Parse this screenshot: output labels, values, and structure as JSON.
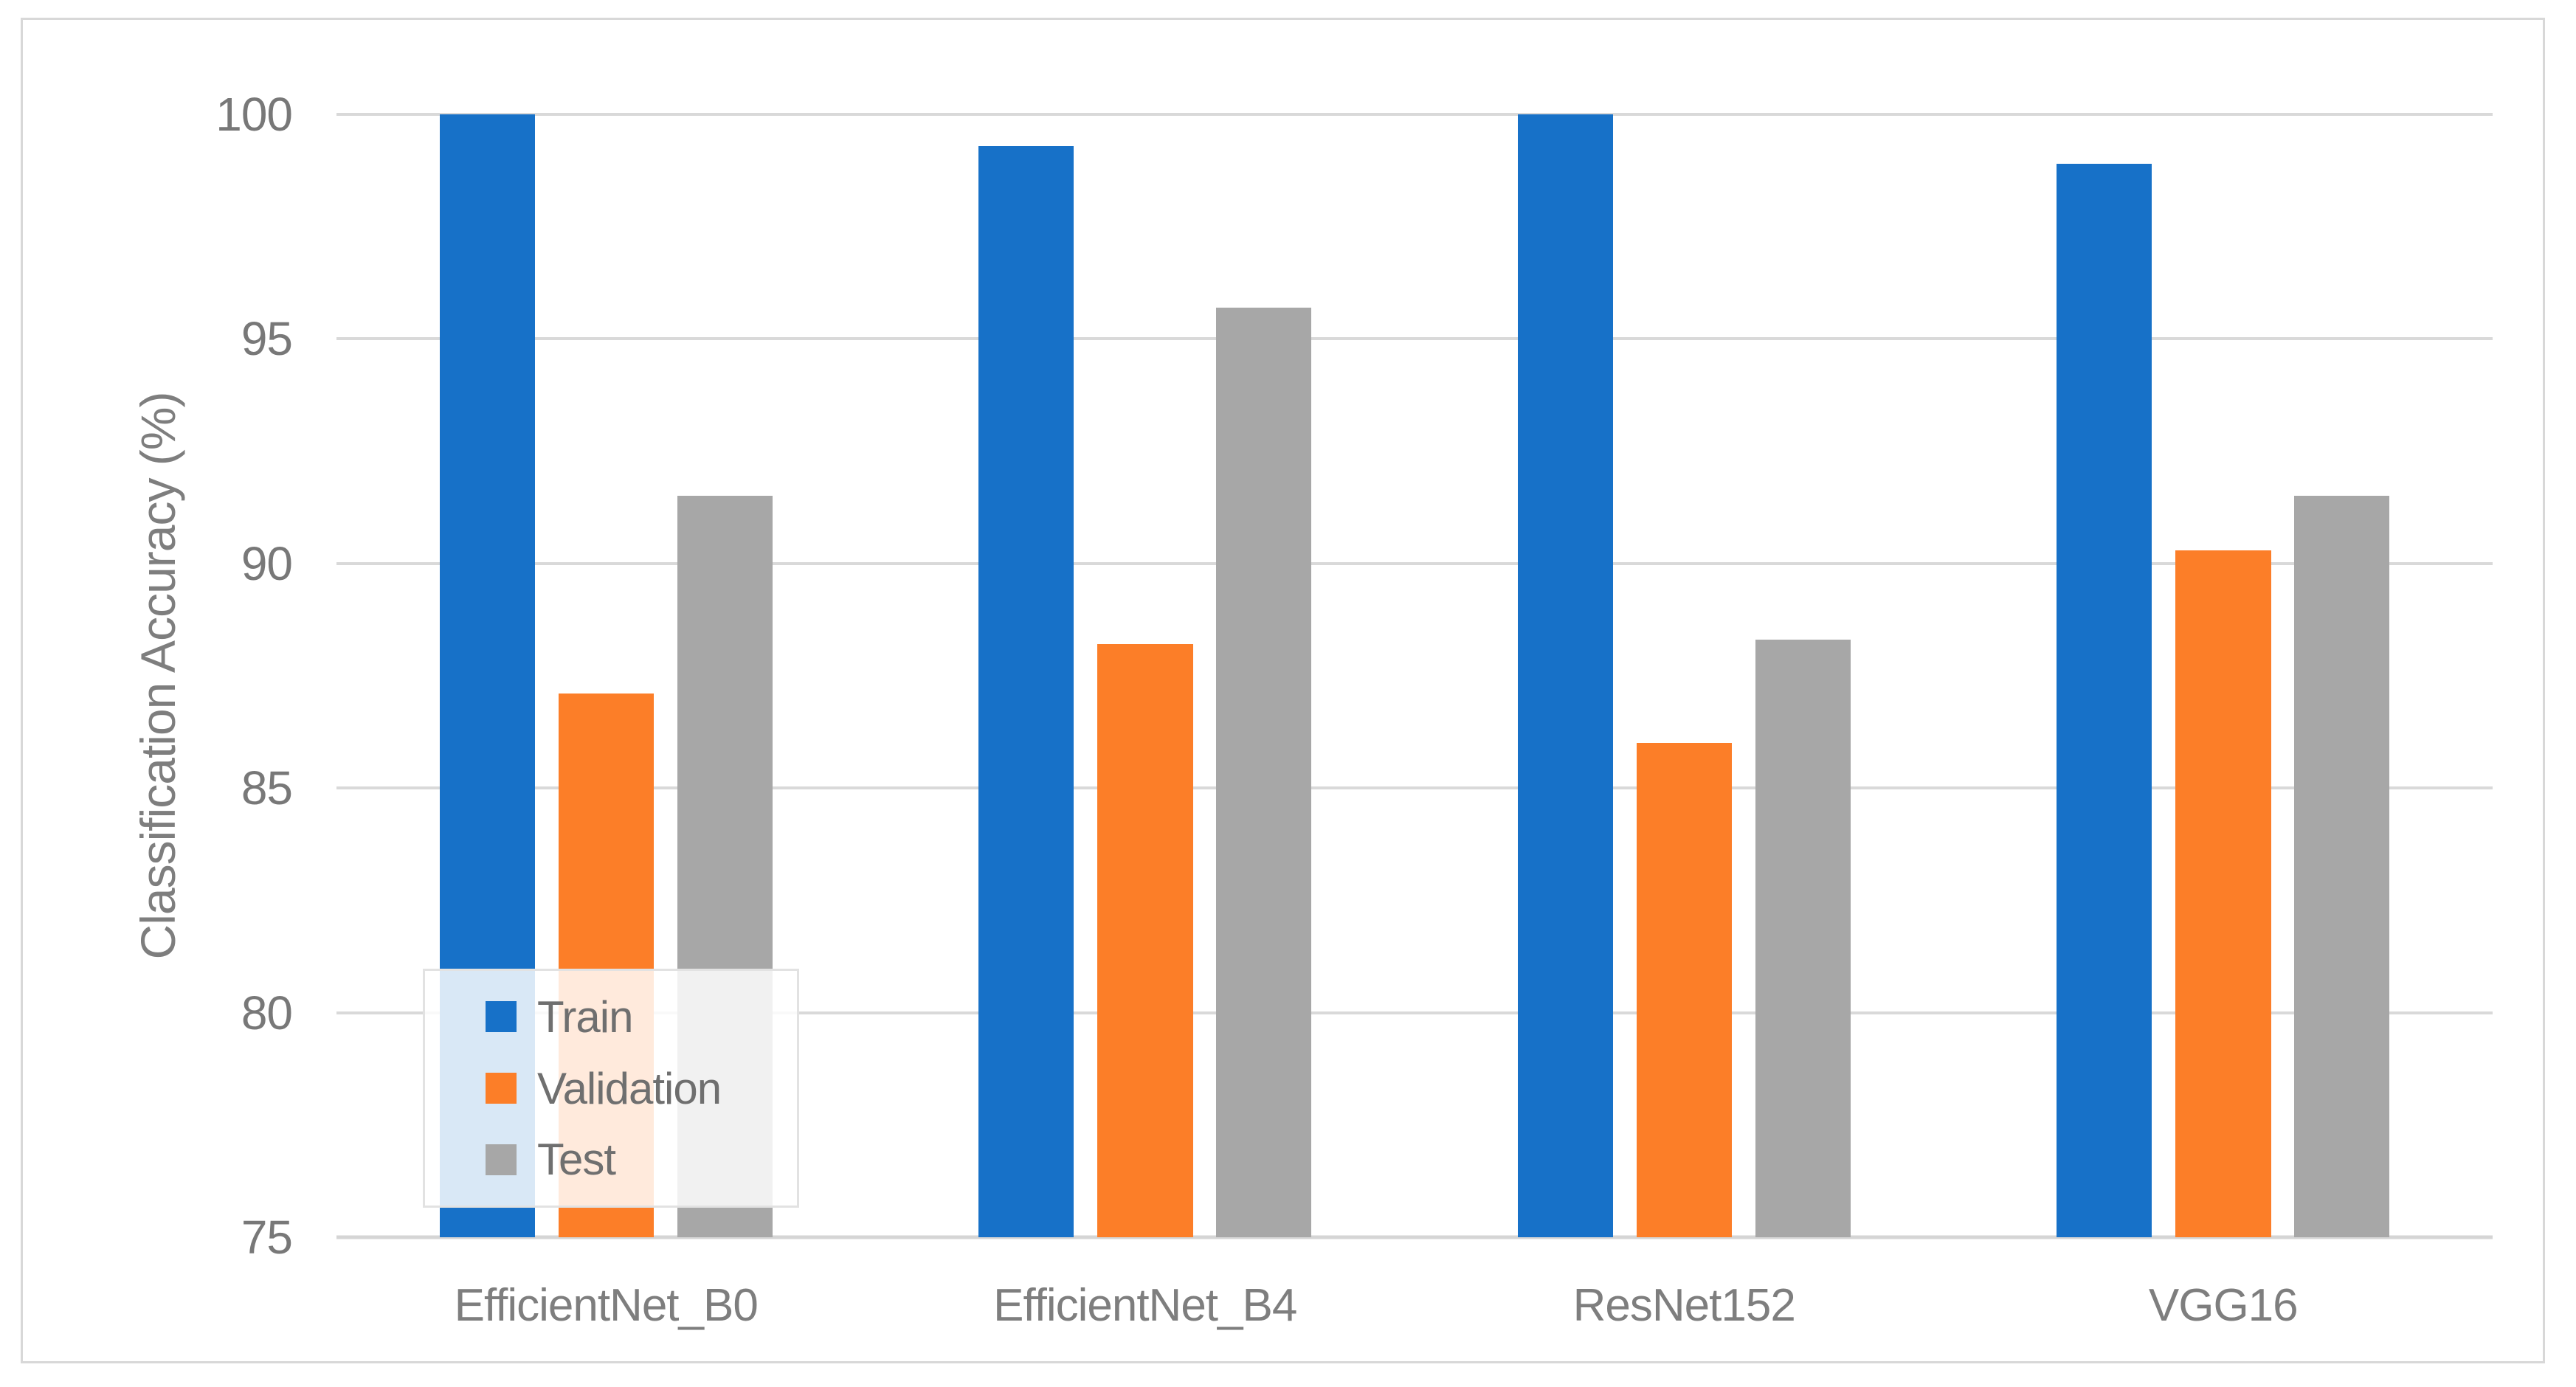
{
  "chart_data": {
    "type": "bar",
    "title": "",
    "ylabel": "Classification Accuracy (%)",
    "xlabel": "",
    "ylim": [
      75,
      100
    ],
    "ytick_step": 5,
    "yticks": [
      100,
      95,
      90,
      85,
      80,
      75
    ],
    "grid": true,
    "legend_position": "inside-bottom-left",
    "legend_labels": [
      "Train",
      "Validation",
      "Test"
    ],
    "categories": [
      "EfficientNet_B0",
      "EfficientNet_B4",
      "ResNet152",
      "VGG16"
    ],
    "series": [
      {
        "name": "Train",
        "color": "#1771C8",
        "values": [
          100.0,
          99.3,
          100.0,
          98.9
        ]
      },
      {
        "name": "Validation",
        "color": "#FC7E28",
        "values": [
          87.1,
          88.2,
          86.0,
          90.3
        ]
      },
      {
        "name": "Test",
        "color": "#A7A7A7",
        "values": [
          91.5,
          95.7,
          88.3,
          91.5
        ]
      }
    ]
  },
  "colors": {
    "grid": "#D9D9D9",
    "frame_border": "#D8D8D8",
    "axis_text": "#7E7E7E",
    "background": "#FFFFFF"
  }
}
